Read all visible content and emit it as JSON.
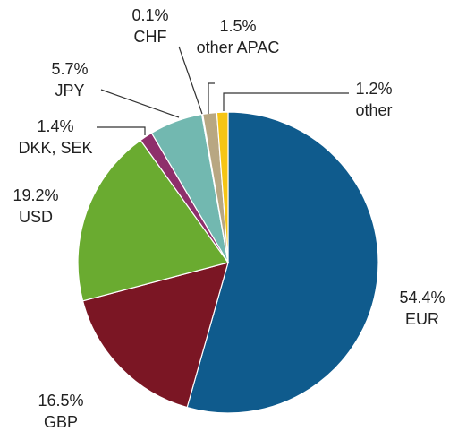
{
  "chart_data": {
    "type": "pie",
    "categories": [
      "EUR",
      "GBP",
      "USD",
      "DKK, SEK",
      "JPY",
      "CHF",
      "other APAC",
      "other"
    ],
    "values": [
      54.4,
      16.5,
      19.2,
      1.4,
      5.7,
      0.1,
      1.5,
      1.2
    ],
    "value_labels": [
      "54.4%",
      "16.5%",
      "19.2%",
      "1.4%",
      "5.7%",
      "0.1%",
      "1.5%",
      "1.2%"
    ],
    "colors": [
      "#0f5b8d",
      "#7b1624",
      "#6aab30",
      "#8e2f6b",
      "#72b8b0",
      "#90c6e6",
      "#b8a782",
      "#f6c514"
    ]
  }
}
